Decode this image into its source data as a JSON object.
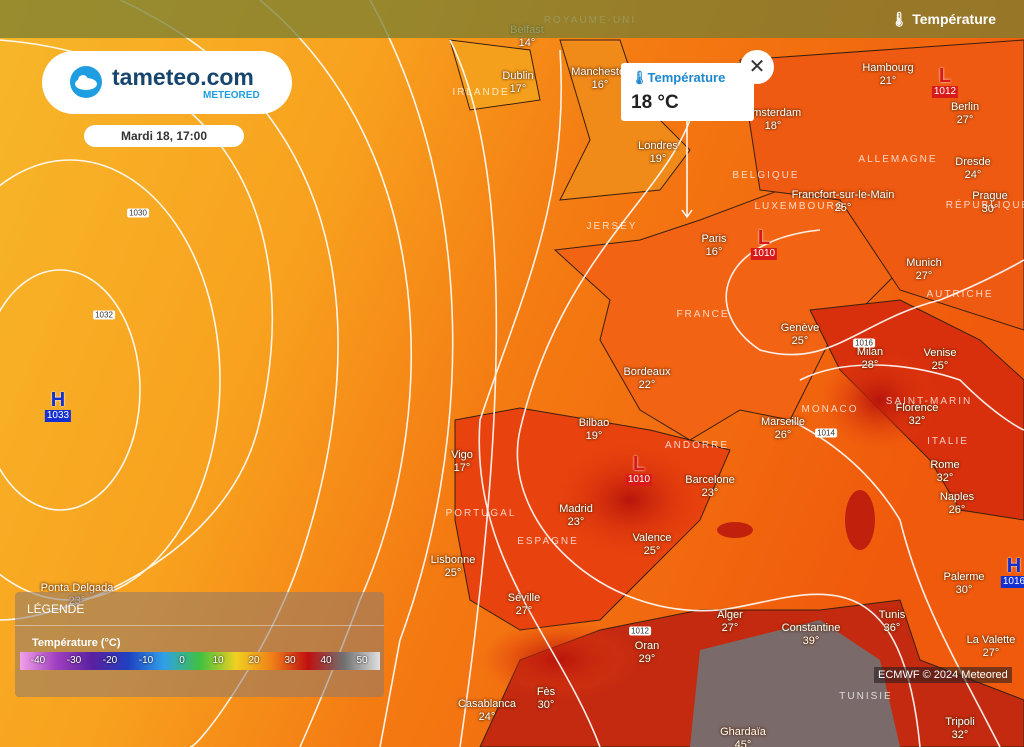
{
  "header": {
    "logo": "tameteo.com",
    "logo_sub": "METEORED",
    "date": "Mardi 18, 17:00",
    "layer": "Température"
  },
  "tooltip": {
    "title": "Température",
    "value": "18 °C"
  },
  "cities": [
    {
      "name": "Belfast",
      "temp": "14°"
    },
    {
      "name": "Dublin",
      "temp": "17°"
    },
    {
      "name": "Manchester",
      "temp": "16°"
    },
    {
      "name": "Londres",
      "temp": "19°"
    },
    {
      "name": "Amsterdam",
      "temp": "18°"
    },
    {
      "name": "Hambourg",
      "temp": "21°"
    },
    {
      "name": "Berlin",
      "temp": "27°"
    },
    {
      "name": "Dresde",
      "temp": "24°"
    },
    {
      "name": "Prague",
      "temp": "30°"
    },
    {
      "name": "Francfort-sur-le-Main",
      "temp": "25°"
    },
    {
      "name": "Paris",
      "temp": "16°"
    },
    {
      "name": "Munich",
      "temp": "27°"
    },
    {
      "name": "Genève",
      "temp": "25°"
    },
    {
      "name": "Milan",
      "temp": "28°"
    },
    {
      "name": "Venise",
      "temp": "25°"
    },
    {
      "name": "Bordeaux",
      "temp": "22°"
    },
    {
      "name": "Bilbao",
      "temp": "19°"
    },
    {
      "name": "Marseille",
      "temp": "26°"
    },
    {
      "name": "Florence",
      "temp": "32°"
    },
    {
      "name": "Vigo",
      "temp": "17°"
    },
    {
      "name": "Barcelone",
      "temp": "23°"
    },
    {
      "name": "Rome",
      "temp": "32°"
    },
    {
      "name": "Madrid",
      "temp": "23°"
    },
    {
      "name": "Naples",
      "temp": "26°"
    },
    {
      "name": "Valence",
      "temp": "25°"
    },
    {
      "name": "Lisbonne",
      "temp": "25°"
    },
    {
      "name": "Palerme",
      "temp": "30°"
    },
    {
      "name": "Séville",
      "temp": "27°"
    },
    {
      "name": "Alger",
      "temp": "27°"
    },
    {
      "name": "Constantine",
      "temp": "39°"
    },
    {
      "name": "Tunis",
      "temp": "36°"
    },
    {
      "name": "Oran",
      "temp": "29°"
    },
    {
      "name": "La Valette",
      "temp": "27°"
    },
    {
      "name": "Fès",
      "temp": "30°"
    },
    {
      "name": "Casablanca",
      "temp": "24°"
    },
    {
      "name": "Tripoli",
      "temp": "32°"
    },
    {
      "name": "Ghardaïa",
      "temp": "45°"
    },
    {
      "name": "Ponta Delgada",
      "temp": "23°"
    }
  ],
  "countries": [
    "ROYAUME-UNI",
    "IRLANDE",
    "BELGIQUE",
    "ALLEMAGNE",
    "LUXEMBOURG",
    "RÉPUBLIQUE",
    "FRANCE",
    "AUTRICHE",
    "MONACO",
    "ITALIE",
    "ANDORRE",
    "PORTUGAL",
    "ESPAGNE",
    "SAINT-MARIN",
    "TUNISIE",
    "JERSEY"
  ],
  "pressure_centers": [
    {
      "symbol": "H",
      "value": "1033"
    },
    {
      "symbol": "L",
      "value": "1010"
    },
    {
      "symbol": "L",
      "value": "1012"
    },
    {
      "symbol": "L",
      "value": "1010"
    },
    {
      "symbol": "H",
      "value": "1016"
    }
  ],
  "isobar_labels": [
    "1030",
    "1032",
    "1016",
    "1014",
    "1012"
  ],
  "legend": {
    "title": "LÉGENDE",
    "subtitle": "Température (°C)",
    "scale": [
      "-40",
      "-30",
      "-20",
      "-10",
      "0",
      "10",
      "20",
      "30",
      "40",
      "50"
    ]
  },
  "attribution": "ECMWF © 2024 Meteored"
}
